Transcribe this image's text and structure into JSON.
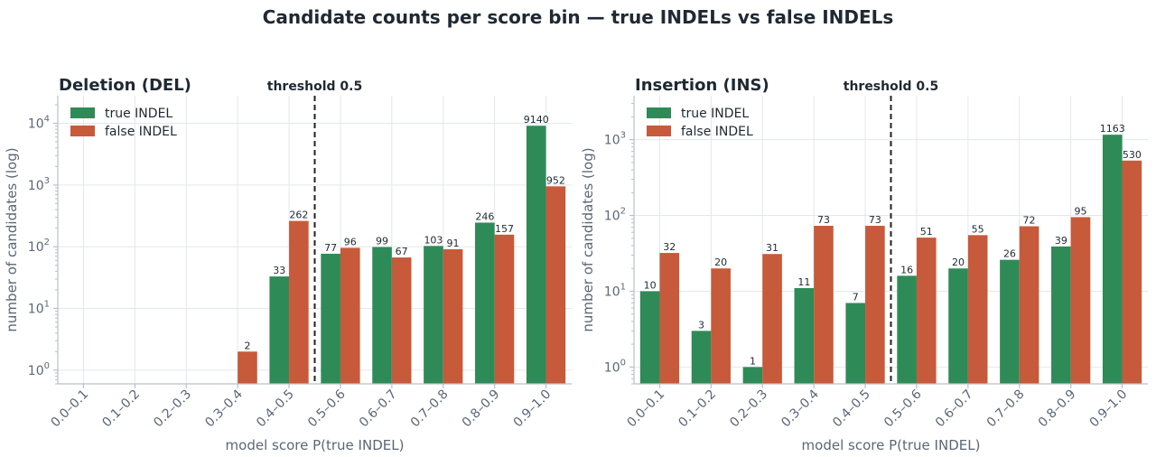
{
  "title": "Candidate counts per score bin  —  true INDELs vs false INDELs",
  "colors": {
    "true": "#2e8b57",
    "false": "#c65a3a",
    "grid": "#e3e7eb",
    "axis": "#b9c0c8",
    "threshold": "#222222"
  },
  "chart_data": [
    {
      "type": "bar",
      "title": "Deletion (DEL)",
      "xlabel": "model score  P(true INDEL)",
      "ylabel": "number of candidates (log)",
      "yscale": "log",
      "ylim": [
        0.6,
        28000
      ],
      "yticks": [
        1,
        10,
        100,
        1000,
        10000
      ],
      "ytick_labels": [
        [
          "10",
          "0"
        ],
        [
          "10",
          "1"
        ],
        [
          "10",
          "2"
        ],
        [
          "10",
          "3"
        ],
        [
          "10",
          "4"
        ]
      ],
      "categories": [
        "0.0–0.1",
        "0.1–0.2",
        "0.2–0.3",
        "0.3–0.4",
        "0.4–0.5",
        "0.5–0.6",
        "0.6–0.7",
        "0.7–0.8",
        "0.8–0.9",
        "0.9–1.0"
      ],
      "series": [
        {
          "name": "true INDEL",
          "values": [
            0,
            0,
            0,
            0,
            33,
            77,
            99,
            103,
            246,
            9140
          ]
        },
        {
          "name": "false INDEL",
          "values": [
            0,
            0,
            0,
            2,
            262,
            96,
            67,
            91,
            157,
            952
          ]
        }
      ],
      "threshold": {
        "label": "threshold 0.5",
        "value": 0.5
      },
      "legend": "top-left",
      "grid": true
    },
    {
      "type": "bar",
      "title": "Insertion (INS)",
      "xlabel": "model score  P(true INDEL)",
      "ylabel": "number of candidates (log)",
      "yscale": "log",
      "ylim": [
        0.6,
        3800
      ],
      "yticks": [
        1,
        10,
        100,
        1000
      ],
      "ytick_labels": [
        [
          "10",
          "0"
        ],
        [
          "10",
          "1"
        ],
        [
          "10",
          "2"
        ],
        [
          "10",
          "3"
        ]
      ],
      "categories": [
        "0.0–0.1",
        "0.1–0.2",
        "0.2–0.3",
        "0.3–0.4",
        "0.4–0.5",
        "0.5–0.6",
        "0.6–0.7",
        "0.7–0.8",
        "0.8–0.9",
        "0.9–1.0"
      ],
      "series": [
        {
          "name": "true INDEL",
          "values": [
            10,
            3,
            1,
            11,
            7,
            16,
            20,
            26,
            39,
            1163
          ]
        },
        {
          "name": "false INDEL",
          "values": [
            32,
            20,
            31,
            73,
            73,
            51,
            55,
            72,
            95,
            530
          ]
        }
      ],
      "threshold": {
        "label": "threshold 0.5",
        "value": 0.5
      },
      "legend": "top-left",
      "grid": true
    }
  ]
}
